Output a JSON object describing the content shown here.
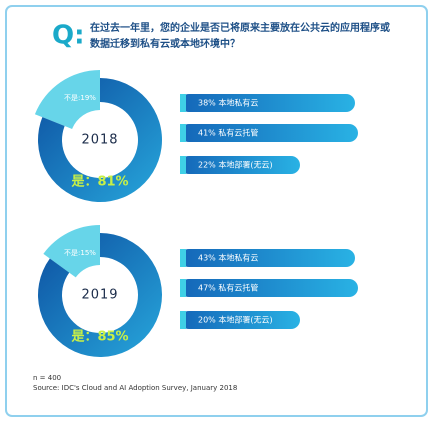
{
  "header": {
    "mark": "Q:",
    "question_lines": [
      "在过去一年里，您的企业是否已将原来主要放在公共云的应用程序或",
      "数据迁移到私有云或本地环境中？"
    ]
  },
  "chart_data": [
    {
      "type": "pie",
      "title": "2018",
      "categories": [
        "不是",
        "是"
      ],
      "values": [
        19,
        81
      ],
      "value_labels": [
        "不是:19%",
        "是：81%"
      ],
      "colors": [
        "#5fd3e8",
        "#1f78c8"
      ],
      "details": [
        "38% 本地私有云",
        "41% 私有云托管",
        "22% 本地部署(无云)"
      ]
    },
    {
      "type": "pie",
      "title": "2019",
      "categories": [
        "不是",
        "是"
      ],
      "values": [
        15,
        85
      ],
      "value_labels": [
        "不是:15%",
        "是：85%"
      ],
      "colors": [
        "#5fd3e8",
        "#1f78c8"
      ],
      "details": [
        "43% 本地私有云",
        "47% 私有云托管",
        "20% 本地部署(无云)"
      ]
    }
  ],
  "footer": [
    "n = 400",
    "Source: IDC's Cloud and AI Adoption Survey, January 2018"
  ]
}
